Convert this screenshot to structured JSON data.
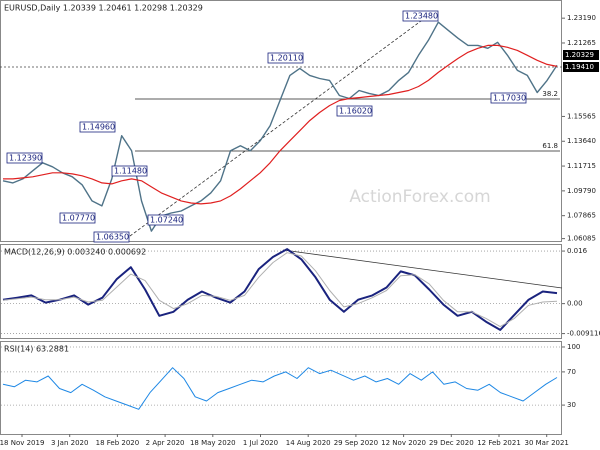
{
  "chart_data": [
    {
      "type": "line",
      "title": "EURUSD,Daily 1.20339 1.20461 1.20298 1.20329",
      "ylim": [
        1.059,
        1.246
      ],
      "yticks": [
        {
          "value": 1.2319,
          "label": "1.23190"
        },
        1.21265,
        1.15565,
        {
          "value": 1.1364,
          "label": "1.13640"
        },
        1.11715,
        {
          "value": 1.0979,
          "label": "1.09790"
        },
        1.07865,
        1.06085
      ],
      "series": [
        {
          "color": "#4f7388",
          "values": [
            1.1057,
            1.1041,
            1.1072,
            1.1135,
            1.1197,
            1.1166,
            1.1119,
            1.1088,
            1.1026,
            1.0901,
            1.0862,
            1.1072,
            1.1407,
            1.129,
            1.0901,
            1.0667,
            1.0784,
            1.0807,
            1.0823,
            1.0862,
            1.0901,
            1.0963,
            1.1057,
            1.129,
            1.1329,
            1.129,
            1.1368,
            1.1485,
            1.168,
            1.1875,
            1.1929,
            1.1875,
            1.1851,
            1.1836,
            1.1719,
            1.1696,
            1.1758,
            1.1735,
            1.1719,
            1.1758,
            1.1836,
            1.1898,
            1.2031,
            1.2147,
            1.2288,
            1.2225,
            1.2163,
            1.2108,
            1.2108,
            1.2085,
            1.2132,
            1.2031,
            1.1914,
            1.1875,
            1.1742,
            1.1836,
            1.1953
          ]
        },
        {
          "color": "#e02020",
          "values": [
            1.1072,
            1.1072,
            1.108,
            1.1088,
            1.1104,
            1.1119,
            1.1119,
            1.1111,
            1.1096,
            1.1072,
            1.1041,
            1.1033,
            1.1057,
            1.1072,
            1.1057,
            1.101,
            1.0963,
            1.0932,
            1.0901,
            1.0885,
            1.0878,
            1.0885,
            1.0901,
            1.094,
            1.0994,
            1.1057,
            1.1119,
            1.1197,
            1.129,
            1.1368,
            1.1446,
            1.1524,
            1.1587,
            1.1641,
            1.168,
            1.1696,
            1.1703,
            1.1711,
            1.1719,
            1.1727,
            1.1742,
            1.1758,
            1.1789,
            1.1836,
            1.1898,
            1.1953,
            1.2007,
            1.2054,
            1.2085,
            1.2108,
            1.2108,
            1.2093,
            1.2069,
            1.2031,
            1.1992,
            1.196,
            1.1945
          ]
        }
      ],
      "price_tags": [
        "1.20329",
        "1.19410"
      ],
      "annotations": [
        "1.23480",
        "1.20110",
        "1.14960",
        "1.12390",
        "1.11480",
        "1.07770",
        "1.07240",
        "1.06350",
        "1.16020",
        "1.17030"
      ],
      "fib_labels": [
        "38.2",
        "61.8"
      ],
      "watermark": "ActionForex.com"
    },
    {
      "type": "line",
      "title": "MACD(12,26,9) 0.003240 0.000692",
      "ylim": [
        -0.01046,
        0.01815
      ],
      "yticks": [
        0.016,
        {
          "value": 0,
          "label": "0.00"
        },
        -0.009116
      ],
      "grid": true,
      "series": [
        {
          "color": "#1a237e",
          "values": [
            0.0012,
            0.0018,
            0.0025,
            0.0003,
            0.0012,
            0.0025,
            -0.0003,
            0.0018,
            0.0074,
            0.0111,
            0.0043,
            -0.0037,
            -0.0025,
            0.0012,
            0.0037,
            0.0018,
            0.0003,
            0.0037,
            0.0105,
            0.0142,
            0.0166,
            0.0135,
            0.008,
            0.0012,
            -0.0025,
            0.0012,
            0.0025,
            0.0049,
            0.0098,
            0.0086,
            0.0043,
            -0.0003,
            -0.0037,
            -0.0025,
            -0.0055,
            -0.008,
            -0.0034,
            0.0012,
            0.0037,
            0.0032
          ]
        },
        {
          "color": "#b0b0b0",
          "values": [
            0.001,
            0.0015,
            0.002,
            0.0012,
            0.0012,
            0.002,
            0.0005,
            0.001,
            0.005,
            0.009,
            0.007,
            0.001,
            -0.0015,
            0.0,
            0.0025,
            0.0022,
            0.001,
            0.0025,
            0.008,
            0.0125,
            0.0155,
            0.0145,
            0.01,
            0.004,
            -0.001,
            0.0,
            0.0018,
            0.004,
            0.0085,
            0.0088,
            0.006,
            0.001,
            -0.0025,
            -0.0025,
            -0.0045,
            -0.007,
            -0.0045,
            -0.0005,
            0.0005,
            0.0007
          ]
        }
      ]
    },
    {
      "type": "line",
      "title": "RSI(14) 63.2881",
      "ylim": [
        -4.8,
        107.2
      ],
      "yticks": [
        100,
        70,
        30
      ],
      "grid": true,
      "series": [
        {
          "color": "#1e88e5",
          "values": [
            55,
            52,
            60,
            58,
            65,
            50,
            45,
            55,
            48,
            40,
            35,
            30,
            25,
            45,
            60,
            75,
            62,
            40,
            35,
            45,
            50,
            55,
            60,
            58,
            65,
            70,
            62,
            75,
            68,
            72,
            66,
            60,
            65,
            58,
            62,
            55,
            68,
            60,
            70,
            55,
            58,
            50,
            48,
            55,
            45,
            40,
            35,
            45,
            55,
            63.2881
          ]
        }
      ]
    }
  ],
  "dates": [
    "18 Nov 2019",
    "3 Jan 2020",
    "18 Feb 2020",
    "2 Apr 2020",
    "18 May 2020",
    "1 Jul 2020",
    "14 Aug 2020",
    "29 Sep 2020",
    "12 Nov 2020",
    "29 Dec 2020",
    "12 Feb 2021",
    "30 Mar 2021"
  ]
}
